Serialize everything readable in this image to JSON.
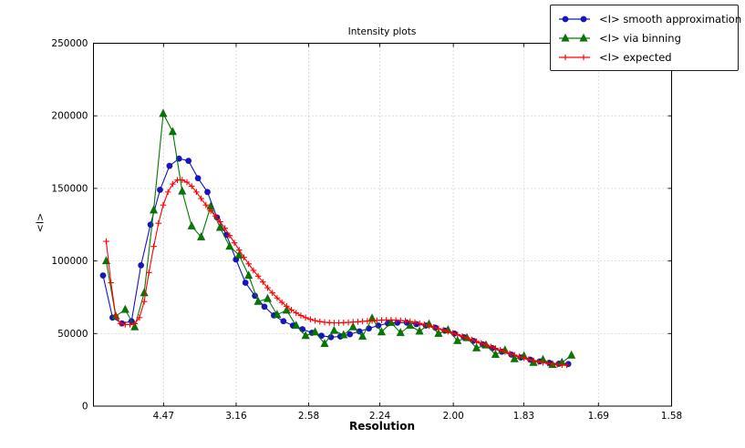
{
  "chart_data": {
    "type": "line",
    "title": "Intensity plots",
    "xlabel": "Resolution",
    "ylabel": "<I>",
    "x_scale": "linear in 1/resolution^2",
    "grid": "dotted",
    "legend_position": "upper right, overlapping top-right corner",
    "x_axis": {
      "s_min": 0.0017,
      "s_max": 0.4006,
      "ticks": [
        {
          "label": "4.47",
          "s": 0.05005
        },
        {
          "label": "3.16",
          "s": 0.10014
        },
        {
          "label": "2.58",
          "s": 0.15023
        },
        {
          "label": "2.24",
          "s": 0.1993
        },
        {
          "label": "2.00",
          "s": 0.25
        },
        {
          "label": "1.83",
          "s": 0.29861
        },
        {
          "label": "1.69",
          "s": 0.35013
        },
        {
          "label": "1.58",
          "s": 0.4006
        }
      ]
    },
    "y_axis": {
      "min": 0,
      "max": 250000,
      "ticks": [
        {
          "label": "0",
          "v": 0
        },
        {
          "label": "50000",
          "v": 50000
        },
        {
          "label": "100000",
          "v": 100000
        },
        {
          "label": "150000",
          "v": 150000
        },
        {
          "label": "200000",
          "v": 200000
        },
        {
          "label": "250000",
          "v": 250000
        }
      ]
    },
    "series": [
      {
        "name": "<I> smooth approximation",
        "color": "#1414cc",
        "marker": "circle",
        "x_s_start": 0.0083,
        "x_s_step": 0.006551,
        "values": [
          90000,
          61000,
          57000,
          58500,
          97000,
          125000,
          149000,
          165500,
          170500,
          169000,
          157000,
          147500,
          130000,
          118000,
          101000,
          85000,
          76000,
          68500,
          62500,
          58500,
          55500,
          53000,
          50500,
          48500,
          47500,
          48000,
          49500,
          51500,
          53500,
          55500,
          57000,
          57500,
          57500,
          56500,
          55500,
          54000,
          52000,
          50000,
          47500,
          45000,
          42500,
          40000,
          37500,
          35500,
          33500,
          32000,
          30800,
          29800,
          29200,
          29000
        ]
      },
      {
        "name": "<I> via binning",
        "color": "#007a00",
        "marker": "triangle",
        "x_s_start": 0.0105,
        "x_s_step": 0.006551,
        "values": [
          100000,
          62000,
          66500,
          54500,
          78000,
          135000,
          201500,
          189000,
          148000,
          124000,
          116500,
          137500,
          123000,
          110000,
          104000,
          90000,
          72000,
          74000,
          63000,
          66000,
          55500,
          48500,
          51000,
          43000,
          52000,
          49000,
          54500,
          48000,
          60500,
          51000,
          57500,
          50500,
          55500,
          51500,
          56500,
          50000,
          52500,
          45000,
          47000,
          40000,
          42000,
          35500,
          38500,
          32500,
          34500,
          30000,
          32000,
          28500,
          30000,
          35000
        ]
      },
      {
        "name": "<I> expected",
        "color": "#ff0000",
        "marker": "plus",
        "x_s_start": 0.0105,
        "x_s_step": 0.003276,
        "values": [
          113500,
          85000,
          62000,
          57000,
          56200,
          56200,
          56800,
          61000,
          72000,
          92000,
          110000,
          126000,
          138500,
          147500,
          153000,
          155800,
          155800,
          154300,
          151500,
          147500,
          143000,
          138500,
          134500,
          131000,
          127000,
          122500,
          117500,
          112500,
          107500,
          102500,
          98000,
          93500,
          89500,
          85500,
          81500,
          78000,
          74500,
          71500,
          68800,
          66300,
          64200,
          62400,
          61000,
          59800,
          58900,
          58200,
          57800,
          57500,
          57400,
          57400,
          57500,
          57700,
          57900,
          58100,
          58400,
          58600,
          58800,
          59000,
          59200,
          59300,
          59300,
          59200,
          59000,
          58700,
          58300,
          57700,
          57000,
          56200,
          55300,
          54400,
          53400,
          52400,
          51400,
          50300,
          49200,
          48100,
          47000,
          45800,
          44600,
          43400,
          42200,
          41000,
          39800,
          38600,
          37400,
          36300,
          35200,
          34100,
          33100,
          32200,
          31400,
          30600,
          30000,
          29400,
          29000,
          28600,
          28400,
          28300
        ]
      }
    ]
  }
}
